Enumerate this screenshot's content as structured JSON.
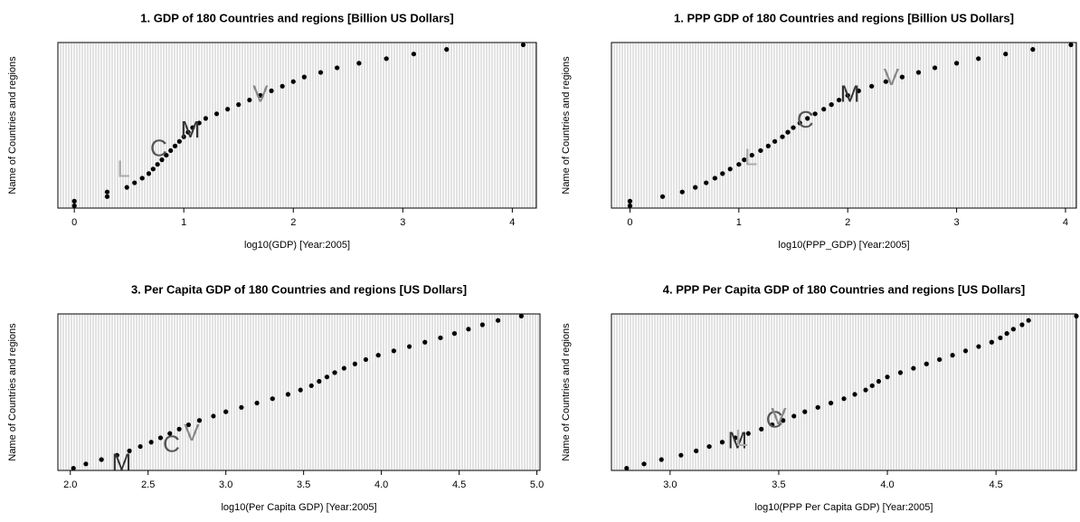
{
  "chart_data": [
    {
      "type": "dotchart",
      "title": "1. GDP of 180 Countries and regions [Billion US Dollars]",
      "x_label": "log10(GDP) [Year:2005]",
      "y_label": "Name of Countries and regions",
      "xlim": [
        -0.15,
        4.22
      ],
      "xticks": [
        0,
        1,
        2,
        3,
        4
      ],
      "color": "#000000",
      "values": [
        0,
        0,
        0.3,
        0.3,
        0.48,
        0.55,
        0.62,
        0.68,
        0.72,
        0.76,
        0.8,
        0.84,
        0.88,
        0.92,
        0.96,
        1.0,
        1.04,
        1.08,
        1.14,
        1.2,
        1.3,
        1.4,
        1.5,
        1.6,
        1.7,
        1.8,
        1.9,
        2.0,
        2.1,
        2.25,
        2.4,
        2.6,
        2.85,
        3.1,
        3.4,
        4.1
      ],
      "annotations": [
        {
          "text": "L",
          "x": 0.45,
          "y": 7.6,
          "color": "#aaaaaa"
        },
        {
          "text": "C",
          "x": 0.77,
          "y": 12.2,
          "color": "#555555"
        },
        {
          "text": "M",
          "x": 1.06,
          "y": 16.2,
          "color": "#333333"
        },
        {
          "text": "V",
          "x": 1.7,
          "y": 24,
          "color": "#888888"
        }
      ]
    },
    {
      "type": "dotchart",
      "title": "1. PPP GDP of 180 Countries and regions [Billion US Dollars]",
      "x_label": "log10(PPP_GDP) [Year:2005]",
      "y_label": "Name of Countries and regions",
      "xlim": [
        -0.17,
        4.1
      ],
      "xticks": [
        0,
        1,
        2,
        3,
        4
      ],
      "color": "#000000",
      "values": [
        0,
        0,
        0.3,
        0.48,
        0.6,
        0.7,
        0.78,
        0.85,
        0.92,
        1.0,
        1.05,
        1.12,
        1.2,
        1.27,
        1.33,
        1.4,
        1.45,
        1.5,
        1.56,
        1.63,
        1.7,
        1.78,
        1.85,
        1.92,
        2.0,
        2.1,
        2.22,
        2.35,
        2.5,
        2.65,
        2.8,
        3.0,
        3.2,
        3.45,
        3.7,
        4.05
      ],
      "annotations": [
        {
          "text": "L",
          "x": 1.11,
          "y": 10.2,
          "color": "#aaaaaa"
        },
        {
          "text": "C",
          "x": 1.61,
          "y": 18.4,
          "color": "#555555"
        },
        {
          "text": "M",
          "x": 2.02,
          "y": 24,
          "color": "#333333"
        },
        {
          "text": "V",
          "x": 2.4,
          "y": 27.6,
          "color": "#888888"
        }
      ]
    },
    {
      "type": "dotchart",
      "title": "3. Per Capita GDP of 180 Countries and regions [US Dollars]",
      "x_label": "log10(Per Capita GDP) [Year:2005]",
      "y_label": "Name of Countries and regions",
      "xlim": [
        1.92,
        5.02
      ],
      "xticks": [
        {
          "value": 2,
          "label": "2.0"
        },
        2.5,
        {
          "value": 3,
          "label": "3.0"
        },
        3.5,
        {
          "value": 4,
          "label": "4.0"
        },
        4.5,
        {
          "value": 5,
          "label": "5.0"
        }
      ],
      "color": "#000000",
      "values": [
        2.02,
        2.1,
        2.2,
        2.3,
        2.38,
        2.45,
        2.52,
        2.58,
        2.64,
        2.7,
        2.76,
        2.83,
        2.92,
        3.0,
        3.1,
        3.2,
        3.3,
        3.4,
        3.48,
        3.55,
        3.6,
        3.65,
        3.7,
        3.76,
        3.83,
        3.9,
        3.98,
        4.08,
        4.18,
        4.28,
        4.38,
        4.47,
        4.56,
        4.65,
        4.75,
        4.9
      ],
      "annotations": [
        {
          "text": "M",
          "x": 2.33,
          "y": 1,
          "color": "#333333"
        },
        {
          "text": "C",
          "x": 2.65,
          "y": 5.2,
          "color": "#555555"
        },
        {
          "text": "V",
          "x": 2.78,
          "y": 7.8,
          "color": "#888888"
        }
      ]
    },
    {
      "type": "dotchart",
      "title": "4. PPP Per Capita GDP of 180 Countries and regions [US Dollars]",
      "x_label": "log10(PPP Per Capita GDP) [Year:2005]",
      "y_label": "Name of Countries and regions",
      "xlim": [
        2.73,
        4.87
      ],
      "xticks": [
        {
          "value": 3,
          "label": "3.0"
        },
        3.5,
        {
          "value": 4,
          "label": "4.0"
        },
        4.5
      ],
      "color": "#000000",
      "values": [
        2.8,
        2.88,
        2.96,
        3.05,
        3.12,
        3.18,
        3.24,
        3.3,
        3.36,
        3.42,
        3.47,
        3.52,
        3.57,
        3.62,
        3.68,
        3.74,
        3.8,
        3.85,
        3.9,
        3.93,
        3.96,
        4.0,
        4.06,
        4.12,
        4.18,
        4.24,
        4.3,
        4.36,
        4.42,
        4.48,
        4.52,
        4.55,
        4.58,
        4.62,
        4.65,
        4.87
      ],
      "annotations": [
        {
          "text": "M",
          "x": 3.31,
          "y": 6,
          "color": "#333333"
        },
        {
          "text": "L",
          "x": 3.33,
          "y": 6.5,
          "color": "#aaaaaa"
        },
        {
          "text": "C",
          "x": 3.48,
          "y": 10.8,
          "color": "#555555"
        },
        {
          "text": "V",
          "x": 3.5,
          "y": 11.5,
          "color": "#888888"
        }
      ]
    }
  ]
}
